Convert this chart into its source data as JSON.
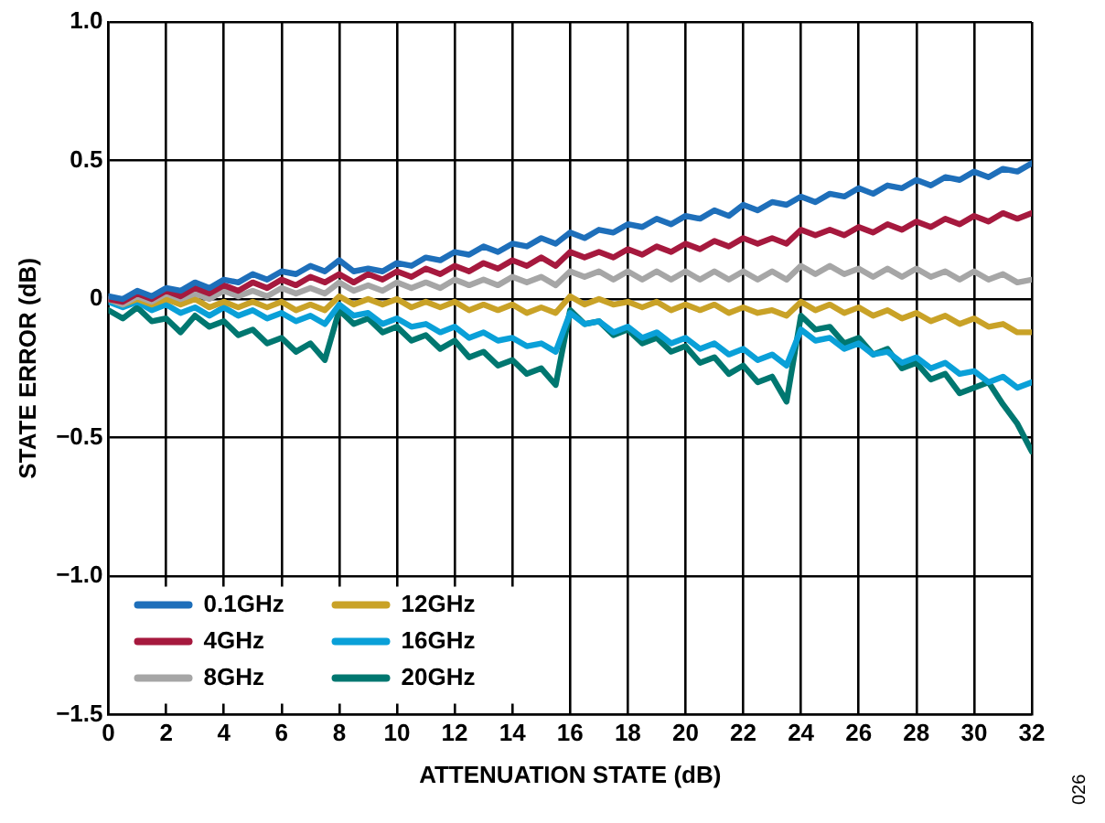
{
  "chart_data": {
    "type": "line",
    "xlabel": "ATTENUATION STATE (dB)",
    "ylabel": "STATE ERROR (dB)",
    "x": [
      0,
      0.5,
      1,
      1.5,
      2,
      2.5,
      3,
      3.5,
      4,
      4.5,
      5,
      5.5,
      6,
      6.5,
      7,
      7.5,
      8,
      8.5,
      9,
      9.5,
      10,
      10.5,
      11,
      11.5,
      12,
      12.5,
      13,
      13.5,
      14,
      14.5,
      15,
      15.5,
      16,
      16.5,
      17,
      17.5,
      18,
      18.5,
      19,
      19.5,
      20,
      20.5,
      21,
      21.5,
      22,
      22.5,
      23,
      23.5,
      24,
      24.5,
      25,
      25.5,
      26,
      26.5,
      27,
      27.5,
      28,
      28.5,
      29,
      29.5,
      30,
      30.5,
      31,
      31.5,
      32
    ],
    "series": [
      {
        "name": "0.1GHz",
        "color": "#1e6fba",
        "values": [
          0.01,
          0.0,
          0.03,
          0.01,
          0.04,
          0.03,
          0.06,
          0.04,
          0.07,
          0.06,
          0.09,
          0.07,
          0.1,
          0.09,
          0.12,
          0.1,
          0.14,
          0.1,
          0.11,
          0.1,
          0.13,
          0.12,
          0.15,
          0.14,
          0.17,
          0.16,
          0.19,
          0.17,
          0.2,
          0.19,
          0.22,
          0.2,
          0.24,
          0.22,
          0.25,
          0.24,
          0.27,
          0.26,
          0.29,
          0.27,
          0.3,
          0.29,
          0.32,
          0.3,
          0.34,
          0.32,
          0.35,
          0.34,
          0.37,
          0.35,
          0.38,
          0.37,
          0.4,
          0.38,
          0.41,
          0.4,
          0.43,
          0.41,
          0.44,
          0.43,
          0.46,
          0.44,
          0.47,
          0.46,
          0.49
        ]
      },
      {
        "name": "4GHz",
        "color": "#a6193e",
        "values": [
          0.0,
          -0.01,
          0.02,
          0.0,
          0.03,
          0.01,
          0.04,
          0.02,
          0.05,
          0.03,
          0.06,
          0.04,
          0.07,
          0.05,
          0.08,
          0.06,
          0.09,
          0.06,
          0.09,
          0.07,
          0.1,
          0.08,
          0.11,
          0.09,
          0.12,
          0.1,
          0.13,
          0.11,
          0.14,
          0.12,
          0.15,
          0.12,
          0.17,
          0.15,
          0.17,
          0.15,
          0.18,
          0.16,
          0.19,
          0.17,
          0.2,
          0.18,
          0.21,
          0.19,
          0.22,
          0.2,
          0.22,
          0.2,
          0.25,
          0.23,
          0.25,
          0.23,
          0.26,
          0.24,
          0.27,
          0.25,
          0.28,
          0.26,
          0.29,
          0.27,
          0.3,
          0.28,
          0.31,
          0.29,
          0.31
        ]
      },
      {
        "name": "8GHz",
        "color": "#a6a6a6",
        "values": [
          0.0,
          -0.02,
          0.01,
          -0.01,
          0.02,
          0.0,
          0.02,
          0.0,
          0.03,
          0.01,
          0.03,
          0.01,
          0.04,
          0.02,
          0.04,
          0.02,
          0.06,
          0.03,
          0.05,
          0.03,
          0.06,
          0.04,
          0.06,
          0.04,
          0.07,
          0.05,
          0.07,
          0.05,
          0.08,
          0.06,
          0.08,
          0.05,
          0.1,
          0.08,
          0.1,
          0.07,
          0.1,
          0.07,
          0.1,
          0.07,
          0.1,
          0.07,
          0.1,
          0.07,
          0.1,
          0.07,
          0.1,
          0.07,
          0.12,
          0.09,
          0.12,
          0.09,
          0.11,
          0.08,
          0.11,
          0.08,
          0.11,
          0.08,
          0.1,
          0.07,
          0.1,
          0.07,
          0.09,
          0.06,
          0.07
        ]
      },
      {
        "name": "12GHz",
        "color": "#c9a227",
        "values": [
          0.0,
          -0.02,
          0.0,
          -0.02,
          0.0,
          -0.02,
          0.0,
          -0.03,
          -0.01,
          -0.03,
          -0.01,
          -0.03,
          -0.01,
          -0.04,
          -0.02,
          -0.04,
          0.01,
          -0.02,
          0.0,
          -0.02,
          0.0,
          -0.03,
          -0.01,
          -0.03,
          -0.01,
          -0.04,
          -0.02,
          -0.04,
          -0.02,
          -0.05,
          -0.03,
          -0.05,
          0.01,
          -0.02,
          0.0,
          -0.02,
          -0.01,
          -0.03,
          -0.01,
          -0.04,
          -0.02,
          -0.04,
          -0.02,
          -0.05,
          -0.03,
          -0.05,
          -0.04,
          -0.06,
          -0.01,
          -0.04,
          -0.02,
          -0.05,
          -0.03,
          -0.06,
          -0.04,
          -0.07,
          -0.05,
          -0.08,
          -0.06,
          -0.09,
          -0.07,
          -0.1,
          -0.09,
          -0.12,
          -0.12
        ]
      },
      {
        "name": "16GHz",
        "color": "#0aa0d8",
        "values": [
          -0.01,
          -0.03,
          -0.01,
          -0.04,
          -0.02,
          -0.05,
          -0.03,
          -0.06,
          -0.03,
          -0.06,
          -0.04,
          -0.07,
          -0.05,
          -0.08,
          -0.06,
          -0.09,
          -0.02,
          -0.06,
          -0.05,
          -0.09,
          -0.07,
          -0.1,
          -0.09,
          -0.12,
          -0.1,
          -0.14,
          -0.12,
          -0.15,
          -0.14,
          -0.17,
          -0.16,
          -0.19,
          -0.05,
          -0.09,
          -0.08,
          -0.12,
          -0.1,
          -0.14,
          -0.12,
          -0.16,
          -0.14,
          -0.18,
          -0.16,
          -0.2,
          -0.18,
          -0.22,
          -0.2,
          -0.24,
          -0.11,
          -0.15,
          -0.14,
          -0.18,
          -0.16,
          -0.2,
          -0.19,
          -0.23,
          -0.21,
          -0.25,
          -0.23,
          -0.27,
          -0.26,
          -0.3,
          -0.28,
          -0.32,
          -0.3
        ]
      },
      {
        "name": "20GHz",
        "color": "#007770",
        "values": [
          -0.04,
          -0.07,
          -0.03,
          -0.08,
          -0.07,
          -0.12,
          -0.06,
          -0.1,
          -0.08,
          -0.13,
          -0.11,
          -0.16,
          -0.14,
          -0.19,
          -0.16,
          -0.22,
          -0.04,
          -0.09,
          -0.07,
          -0.12,
          -0.1,
          -0.15,
          -0.13,
          -0.18,
          -0.15,
          -0.21,
          -0.19,
          -0.24,
          -0.22,
          -0.27,
          -0.25,
          -0.31,
          -0.04,
          -0.09,
          -0.08,
          -0.13,
          -0.11,
          -0.16,
          -0.14,
          -0.19,
          -0.17,
          -0.23,
          -0.21,
          -0.27,
          -0.24,
          -0.3,
          -0.28,
          -0.37,
          -0.06,
          -0.11,
          -0.1,
          -0.16,
          -0.14,
          -0.2,
          -0.18,
          -0.25,
          -0.23,
          -0.29,
          -0.27,
          -0.34,
          -0.32,
          -0.3,
          -0.38,
          -0.45,
          -0.55
        ]
      }
    ],
    "xlim": [
      0,
      32
    ],
    "xticks": [
      0,
      2,
      4,
      6,
      8,
      10,
      12,
      14,
      16,
      18,
      20,
      22,
      24,
      26,
      28,
      30,
      32
    ],
    "ylim": [
      -1.5,
      1
    ],
    "yticks": [
      {
        "value": -1.5,
        "label": "−1.5"
      },
      {
        "value": -1,
        "label": "−1.0"
      },
      {
        "value": -0.5,
        "label": "−0.5"
      },
      0,
      {
        "value": 0.5,
        "label": "0.5"
      },
      {
        "value": 1,
        "label": "1.0"
      }
    ],
    "grid": true,
    "legend": "bottom left",
    "marker": "none",
    "line_style": "solid",
    "annotations": [
      "026"
    ]
  }
}
